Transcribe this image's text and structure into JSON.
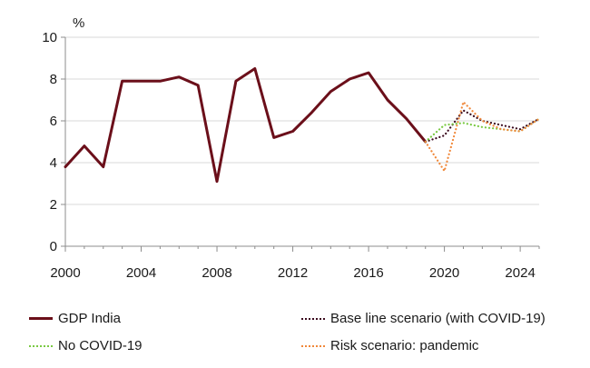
{
  "chart_data": {
    "type": "line",
    "unit_label": "%",
    "xlim": [
      2000,
      2025
    ],
    "ylim": [
      0,
      10
    ],
    "x_ticks": [
      2000,
      2004,
      2008,
      2012,
      2016,
      2020,
      2024
    ],
    "y_ticks": [
      0,
      2,
      4,
      6,
      8,
      10
    ],
    "grid": "horizontal",
    "legend_position": "bottom",
    "series": [
      {
        "name": "GDP India",
        "color": "#6b0f1a",
        "style": "solid",
        "x": [
          2000,
          2001,
          2002,
          2003,
          2004,
          2005,
          2006,
          2007,
          2008,
          2009,
          2010,
          2011,
          2012,
          2013,
          2014,
          2015,
          2016,
          2017,
          2018,
          2019
        ],
        "y": [
          3.8,
          4.8,
          3.8,
          7.9,
          7.9,
          7.9,
          8.1,
          7.7,
          3.1,
          7.9,
          8.5,
          5.2,
          5.5,
          6.4,
          7.4,
          8.0,
          8.3,
          7.0,
          6.1,
          5.0
        ]
      },
      {
        "name": "Base line scenario (with COVID-19)",
        "color": "#3b0a1e",
        "style": "dotted",
        "x": [
          2019,
          2020,
          2021,
          2022,
          2023,
          2024,
          2025
        ],
        "y": [
          5.0,
          5.3,
          6.5,
          6.0,
          5.8,
          5.6,
          6.1
        ]
      },
      {
        "name": "No COVID-19",
        "color": "#7ac943",
        "style": "dotted",
        "x": [
          2019,
          2020,
          2021,
          2022,
          2023,
          2024,
          2025
        ],
        "y": [
          5.0,
          5.8,
          5.9,
          5.7,
          5.6,
          5.5,
          6.1
        ]
      },
      {
        "name": "Risk scenario: pandemic",
        "color": "#f0883a",
        "style": "dotted",
        "x": [
          2019,
          2020,
          2021,
          2022,
          2023,
          2024,
          2025
        ],
        "y": [
          5.0,
          3.6,
          6.9,
          6.0,
          5.6,
          5.5,
          6.1
        ]
      }
    ]
  }
}
